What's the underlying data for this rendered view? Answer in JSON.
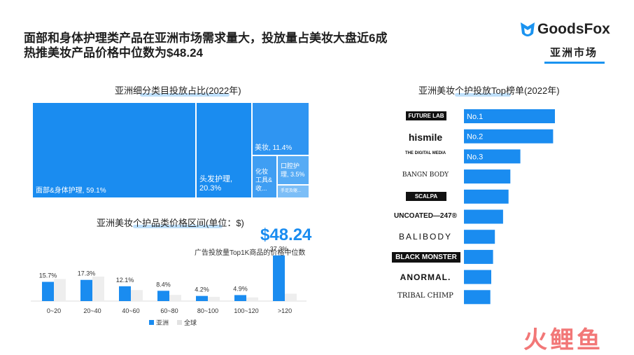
{
  "headline": {
    "line1": "面部和身体护理类产品在亚洲市场需求量大，投放量占美妆大盘近6成",
    "line2": "热推美妆产品价格中位数为$48.24"
  },
  "logo": {
    "text": "GoodsFox",
    "region": "亚洲市场",
    "accent": "#1a93f0"
  },
  "treemap": {
    "title": "亚洲细分类目投放占比(2022年)",
    "cells": [
      {
        "label": "面部&身体护理, 59.1%",
        "value": 59.1
      },
      {
        "label": "头发护理,\n20.3%",
        "value": 20.3
      },
      {
        "label": "美妆, 11.4%",
        "value": 11.4
      },
      {
        "label": "化妆\n工具&\n收...",
        "value": 2.5
      },
      {
        "label": "口腔护\n理, 3.5%",
        "value": 3.5
      },
      {
        "label": "手足及躯...",
        "value": 1.2
      }
    ]
  },
  "price": {
    "median": "$48.24",
    "note": "广告投放量Top1K商品的价格中位数"
  },
  "chart_data": [
    {
      "type": "bar",
      "title": "亚洲美妆个护品类价格区间(单位：$)",
      "categories": [
        "0~20",
        "20~40",
        "40~60",
        "60~80",
        "80~100",
        "100~120",
        ">120"
      ],
      "series": [
        {
          "name": "亚洲",
          "values": [
            15.7,
            17.3,
            12.1,
            8.4,
            4.2,
            4.9,
            37.3
          ],
          "labels": [
            "15.7%",
            "17.3%",
            "12.1%",
            "8.4%",
            "4.2%",
            "4.9%",
            "37.3%"
          ],
          "color": "#1a8cf0"
        },
        {
          "name": "全球",
          "values": [
            18.0,
            20.0,
            9.0,
            5.0,
            3.5,
            3.0,
            6.0
          ],
          "color": "#eeeeee"
        }
      ],
      "ylim": [
        0,
        40
      ],
      "legend": "bottom-center"
    },
    {
      "type": "bar",
      "orientation": "horizontal",
      "title": "亚洲美妆个护投放Top榜单(2022年)",
      "categories": [
        "FUTURE LAB",
        "hismile",
        "THE DIGITAL MEDIA",
        "BANGN BODY",
        "SCALPA",
        "UNCOATED—247®",
        "BALIBODY",
        "BLACK MONSTER",
        "ANORMAL.",
        "TRIBAL CHIMP"
      ],
      "values": [
        100,
        98,
        62,
        51,
        49,
        43,
        34,
        32,
        30,
        29
      ],
      "rank_labels": [
        "No.1",
        "No.2",
        "No.3",
        "",
        "",
        "",
        "",
        "",
        "",
        ""
      ],
      "color": "#1a8cf0"
    }
  ],
  "watermark": "火鲤鱼"
}
